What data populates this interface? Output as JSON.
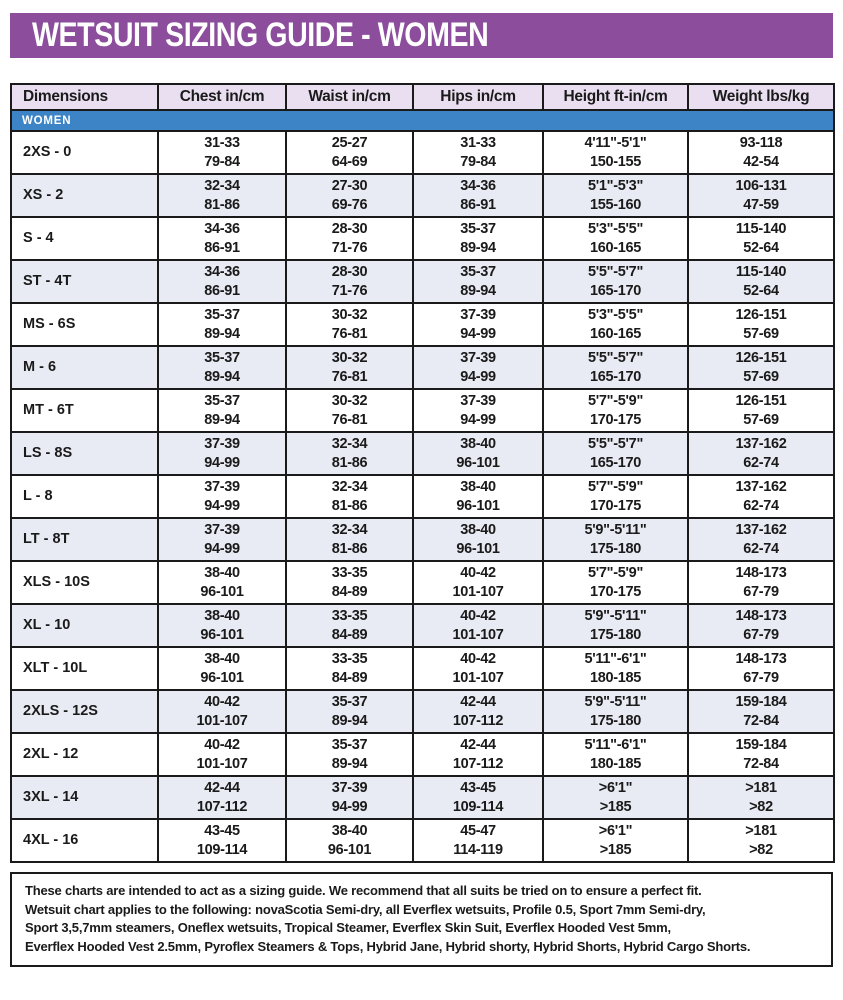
{
  "title": "WETSUIT SIZING GUIDE - WOMEN",
  "colors": {
    "title_bg": "#8C4D9D",
    "title_text": "#FFFFFF",
    "header_bg": "#EADFF1",
    "section_bg": "#3D84C6",
    "section_text": "#FFFFFF",
    "row_alt_bg": "#E8EBF3",
    "border": "#1A1A1A",
    "text": "#1A1A1A"
  },
  "table": {
    "columns": [
      "Dimensions",
      "Chest in/cm",
      "Waist in/cm",
      "Hips in/cm",
      "Height ft-in/cm",
      "Weight lbs/kg"
    ],
    "section_label": "WOMEN",
    "rows": [
      {
        "label": "2XS - 0",
        "chest": [
          "31-33",
          "79-84"
        ],
        "waist": [
          "25-27",
          "64-69"
        ],
        "hips": [
          "31-33",
          "79-84"
        ],
        "height": [
          "4'11\"-5'1\"",
          "150-155"
        ],
        "weight": [
          "93-118",
          "42-54"
        ]
      },
      {
        "label": "XS - 2",
        "chest": [
          "32-34",
          "81-86"
        ],
        "waist": [
          "27-30",
          "69-76"
        ],
        "hips": [
          "34-36",
          "86-91"
        ],
        "height": [
          "5'1\"-5'3\"",
          "155-160"
        ],
        "weight": [
          "106-131",
          "47-59"
        ]
      },
      {
        "label": "S - 4",
        "chest": [
          "34-36",
          "86-91"
        ],
        "waist": [
          "28-30",
          "71-76"
        ],
        "hips": [
          "35-37",
          "89-94"
        ],
        "height": [
          "5'3\"-5'5\"",
          "160-165"
        ],
        "weight": [
          "115-140",
          "52-64"
        ]
      },
      {
        "label": "ST - 4T",
        "chest": [
          "34-36",
          "86-91"
        ],
        "waist": [
          "28-30",
          "71-76"
        ],
        "hips": [
          "35-37",
          "89-94"
        ],
        "height": [
          "5'5\"-5'7\"",
          "165-170"
        ],
        "weight": [
          "115-140",
          "52-64"
        ]
      },
      {
        "label": "MS - 6S",
        "chest": [
          "35-37",
          "89-94"
        ],
        "waist": [
          "30-32",
          "76-81"
        ],
        "hips": [
          "37-39",
          "94-99"
        ],
        "height": [
          "5'3\"-5'5\"",
          "160-165"
        ],
        "weight": [
          "126-151",
          "57-69"
        ]
      },
      {
        "label": "M - 6",
        "chest": [
          "35-37",
          "89-94"
        ],
        "waist": [
          "30-32",
          "76-81"
        ],
        "hips": [
          "37-39",
          "94-99"
        ],
        "height": [
          "5'5\"-5'7\"",
          "165-170"
        ],
        "weight": [
          "126-151",
          "57-69"
        ]
      },
      {
        "label": "MT - 6T",
        "chest": [
          "35-37",
          "89-94"
        ],
        "waist": [
          "30-32",
          "76-81"
        ],
        "hips": [
          "37-39",
          "94-99"
        ],
        "height": [
          "5'7\"-5'9\"",
          "170-175"
        ],
        "weight": [
          "126-151",
          "57-69"
        ]
      },
      {
        "label": "LS - 8S",
        "chest": [
          "37-39",
          "94-99"
        ],
        "waist": [
          "32-34",
          "81-86"
        ],
        "hips": [
          "38-40",
          "96-101"
        ],
        "height": [
          "5'5\"-5'7\"",
          "165-170"
        ],
        "weight": [
          "137-162",
          "62-74"
        ]
      },
      {
        "label": "L - 8",
        "chest": [
          "37-39",
          "94-99"
        ],
        "waist": [
          "32-34",
          "81-86"
        ],
        "hips": [
          "38-40",
          "96-101"
        ],
        "height": [
          "5'7\"-5'9\"",
          "170-175"
        ],
        "weight": [
          "137-162",
          "62-74"
        ]
      },
      {
        "label": "LT - 8T",
        "chest": [
          "37-39",
          "94-99"
        ],
        "waist": [
          "32-34",
          "81-86"
        ],
        "hips": [
          "38-40",
          "96-101"
        ],
        "height": [
          "5'9\"-5'11\"",
          "175-180"
        ],
        "weight": [
          "137-162",
          "62-74"
        ]
      },
      {
        "label": "XLS - 10S",
        "chest": [
          "38-40",
          "96-101"
        ],
        "waist": [
          "33-35",
          "84-89"
        ],
        "hips": [
          "40-42",
          "101-107"
        ],
        "height": [
          "5'7\"-5'9\"",
          "170-175"
        ],
        "weight": [
          "148-173",
          "67-79"
        ]
      },
      {
        "label": "XL - 10",
        "chest": [
          "38-40",
          "96-101"
        ],
        "waist": [
          "33-35",
          "84-89"
        ],
        "hips": [
          "40-42",
          "101-107"
        ],
        "height": [
          "5'9\"-5'11\"",
          "175-180"
        ],
        "weight": [
          "148-173",
          "67-79"
        ]
      },
      {
        "label": "XLT - 10L",
        "chest": [
          "38-40",
          "96-101"
        ],
        "waist": [
          "33-35",
          "84-89"
        ],
        "hips": [
          "40-42",
          "101-107"
        ],
        "height": [
          "5'11\"-6'1\"",
          "180-185"
        ],
        "weight": [
          "148-173",
          "67-79"
        ]
      },
      {
        "label": "2XLS - 12S",
        "chest": [
          "40-42",
          "101-107"
        ],
        "waist": [
          "35-37",
          "89-94"
        ],
        "hips": [
          "42-44",
          "107-112"
        ],
        "height": [
          "5'9\"-5'11\"",
          "175-180"
        ],
        "weight": [
          "159-184",
          "72-84"
        ]
      },
      {
        "label": "2XL - 12",
        "chest": [
          "40-42",
          "101-107"
        ],
        "waist": [
          "35-37",
          "89-94"
        ],
        "hips": [
          "42-44",
          "107-112"
        ],
        "height": [
          "5'11\"-6'1\"",
          "180-185"
        ],
        "weight": [
          "159-184",
          "72-84"
        ]
      },
      {
        "label": "3XL - 14",
        "chest": [
          "42-44",
          "107-112"
        ],
        "waist": [
          "37-39",
          "94-99"
        ],
        "hips": [
          "43-45",
          "109-114"
        ],
        "height": [
          ">6'1\"",
          ">185"
        ],
        "weight": [
          ">181",
          ">82"
        ]
      },
      {
        "label": "4XL - 16",
        "chest": [
          "43-45",
          "109-114"
        ],
        "waist": [
          "38-40",
          "96-101"
        ],
        "hips": [
          "45-47",
          "114-119"
        ],
        "height": [
          ">6'1\"",
          ">185"
        ],
        "weight": [
          ">181",
          ">82"
        ]
      }
    ]
  },
  "footer": {
    "lines": [
      "These charts are intended to act as a sizing guide. We recommend that all suits be tried on to ensure a perfect fit.",
      "Wetsuit chart applies to the following: novaScotia Semi-dry, all Everflex wetsuits, Profile 0.5, Sport 7mm Semi-dry,",
      "Sport 3,5,7mm steamers, Oneflex wetsuits, Tropical Steamer, Everflex Skin Suit, Everflex Hooded Vest 5mm,",
      "Everflex Hooded Vest 2.5mm, Pyroflex Steamers & Tops, Hybrid Jane, Hybrid shorty, Hybrid Shorts, Hybrid Cargo Shorts."
    ]
  }
}
